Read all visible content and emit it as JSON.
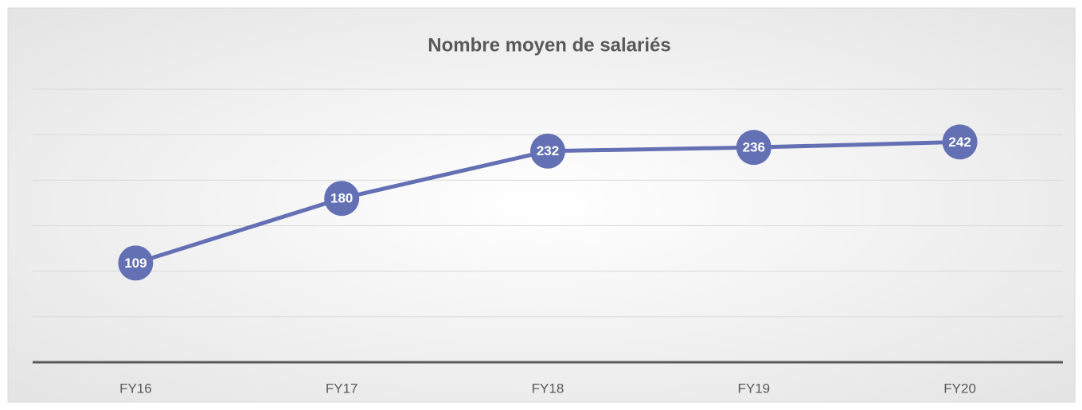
{
  "chart_data": {
    "type": "line",
    "title": "Nombre moyen de salariés",
    "categories": [
      "FY16",
      "FY17",
      "FY18",
      "FY19",
      "FY20"
    ],
    "series": [
      {
        "name": "Nombre moyen de salariés",
        "color": "#6470b4",
        "values": [
          109,
          180,
          232,
          236,
          242
        ]
      }
    ],
    "ylim": [
      0,
      300
    ],
    "yticks": [
      0,
      50,
      100,
      150,
      200,
      250,
      300
    ],
    "grid": true
  }
}
